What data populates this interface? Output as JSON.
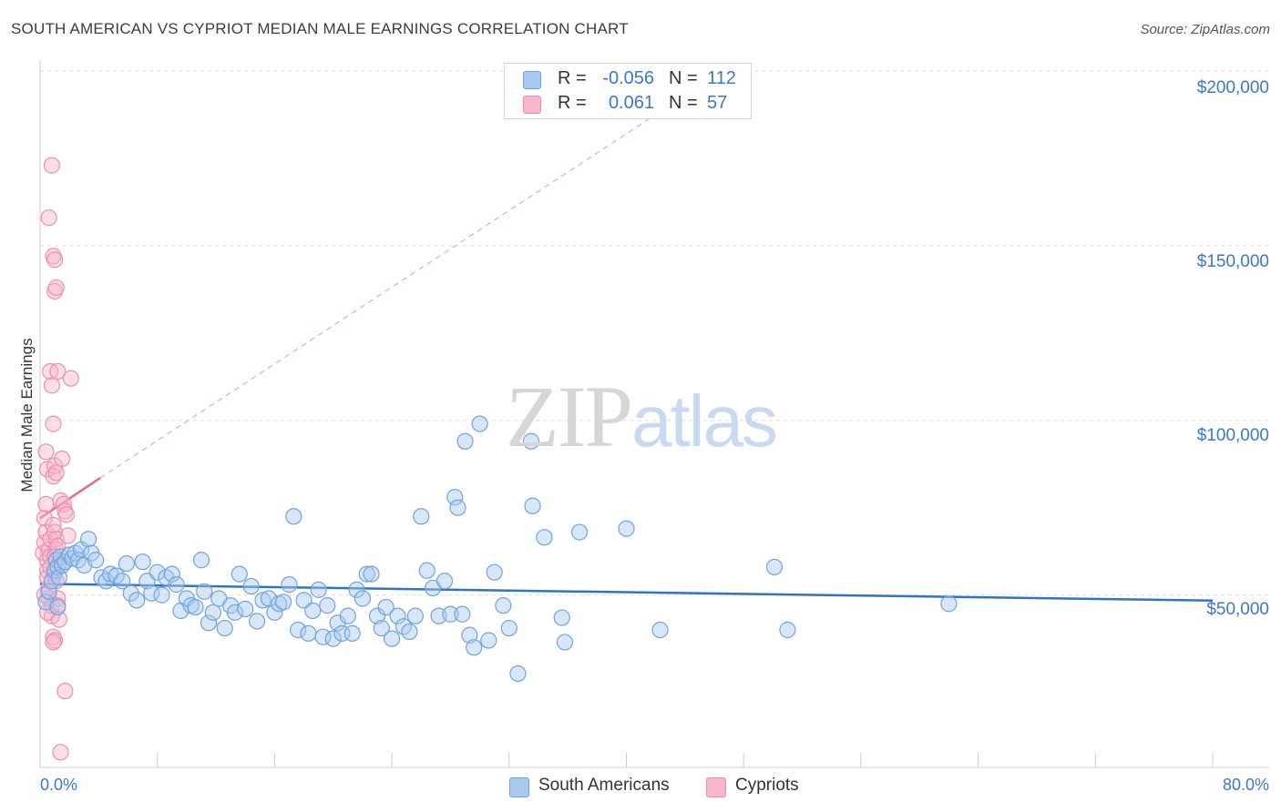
{
  "header": {
    "title": "SOUTH AMERICAN VS CYPRIOT MEDIAN MALE EARNINGS CORRELATION CHART",
    "source": "Source: ZipAtlas.com"
  },
  "watermark": {
    "zip": "ZIP",
    "atlas": "atlas"
  },
  "legend": {
    "rows": [
      {
        "r_label": "R =",
        "r_value": "-0.056",
        "n_label": "N =",
        "n_value": "112",
        "color": "#a9c9f0"
      },
      {
        "r_label": "R =",
        "r_value": "0.061",
        "n_label": "N =",
        "n_value": "57",
        "color": "#f7b6c9"
      }
    ]
  },
  "bottom_legend": [
    {
      "label": "South Americans",
      "color": "#a9c9f0"
    },
    {
      "label": "Cypriots",
      "color": "#f7b6c9"
    }
  ],
  "chart_data": {
    "type": "scatter",
    "title": "SOUTH AMERICAN VS CYPRIOT MEDIAN MALE EARNINGS CORRELATION CHART",
    "xlabel": "",
    "ylabel": "Median Male Earnings",
    "xlim": [
      0,
      80
    ],
    "ylim": [
      0,
      210000
    ],
    "x_tick_labels": {
      "min": "0.0%",
      "max": "80.0%"
    },
    "y_ticks": [
      {
        "value": 50000,
        "label": "$50,000"
      },
      {
        "value": 100000,
        "label": "$100,000"
      },
      {
        "value": 150000,
        "label": "$150,000"
      },
      {
        "value": 200000,
        "label": "$200,000"
      }
    ],
    "grid": true,
    "legend_position": "top-center",
    "series": [
      {
        "name": "South Americans",
        "color": "#6fa3e0",
        "fill": "#a9c9f0",
        "trend": {
          "x": [
            0,
            80
          ],
          "y": [
            53200,
            48400
          ],
          "style": "solid",
          "color": "#2f72c8"
        },
        "points": [
          [
            0.4,
            48000
          ],
          [
            0.6,
            51000
          ],
          [
            0.8,
            54000
          ],
          [
            1.0,
            57000
          ],
          [
            1.1,
            60000
          ],
          [
            1.2,
            58000
          ],
          [
            1.3,
            55000
          ],
          [
            1.4,
            61000
          ],
          [
            1.5,
            58500
          ],
          [
            1.7,
            59500
          ],
          [
            2.0,
            61500
          ],
          [
            2.2,
            60500
          ],
          [
            2.4,
            62000
          ],
          [
            2.6,
            60000
          ],
          [
            2.8,
            63000
          ],
          [
            3.0,
            58500
          ],
          [
            3.3,
            66000
          ],
          [
            3.5,
            62000
          ],
          [
            3.8,
            60000
          ],
          [
            4.2,
            55000
          ],
          [
            4.5,
            54000
          ],
          [
            4.8,
            56000
          ],
          [
            5.2,
            55500
          ],
          [
            5.6,
            54000
          ],
          [
            5.9,
            59000
          ],
          [
            6.2,
            50500
          ],
          [
            6.6,
            48500
          ],
          [
            7.0,
            59500
          ],
          [
            7.3,
            54000
          ],
          [
            7.6,
            50500
          ],
          [
            8.0,
            56500
          ],
          [
            8.3,
            50000
          ],
          [
            8.6,
            55000
          ],
          [
            9.0,
            56000
          ],
          [
            9.3,
            53000
          ],
          [
            9.6,
            45500
          ],
          [
            10.0,
            49000
          ],
          [
            10.3,
            47000
          ],
          [
            10.6,
            46500
          ],
          [
            11.0,
            60000
          ],
          [
            11.2,
            51000
          ],
          [
            11.5,
            42000
          ],
          [
            11.8,
            45000
          ],
          [
            12.2,
            49000
          ],
          [
            12.6,
            40500
          ],
          [
            13.0,
            47000
          ],
          [
            13.3,
            45000
          ],
          [
            13.6,
            56000
          ],
          [
            14.0,
            46000
          ],
          [
            14.4,
            52500
          ],
          [
            14.8,
            42500
          ],
          [
            15.2,
            48500
          ],
          [
            15.6,
            49000
          ],
          [
            16.0,
            45000
          ],
          [
            16.3,
            47500
          ],
          [
            16.6,
            48000
          ],
          [
            17.0,
            53000
          ],
          [
            17.3,
            72500
          ],
          [
            17.6,
            40000
          ],
          [
            18.0,
            48500
          ],
          [
            18.3,
            39000
          ],
          [
            18.6,
            45500
          ],
          [
            19.0,
            51500
          ],
          [
            19.3,
            38000
          ],
          [
            19.6,
            47000
          ],
          [
            20.0,
            37500
          ],
          [
            20.3,
            42000
          ],
          [
            20.6,
            39000
          ],
          [
            21.0,
            44000
          ],
          [
            21.3,
            39000
          ],
          [
            21.6,
            51500
          ],
          [
            22.0,
            49000
          ],
          [
            22.3,
            56000
          ],
          [
            22.6,
            56000
          ],
          [
            23.0,
            44000
          ],
          [
            23.3,
            40500
          ],
          [
            23.6,
            46500
          ],
          [
            24.0,
            37500
          ],
          [
            24.4,
            44000
          ],
          [
            24.8,
            41000
          ],
          [
            25.2,
            39500
          ],
          [
            25.6,
            44000
          ],
          [
            26.0,
            72500
          ],
          [
            26.4,
            57000
          ],
          [
            26.8,
            52000
          ],
          [
            27.2,
            44000
          ],
          [
            27.6,
            54000
          ],
          [
            28.0,
            44500
          ],
          [
            28.3,
            78000
          ],
          [
            28.5,
            75000
          ],
          [
            28.8,
            44500
          ],
          [
            29.0,
            94000
          ],
          [
            29.3,
            38500
          ],
          [
            29.6,
            35000
          ],
          [
            30.0,
            99000
          ],
          [
            30.6,
            37000
          ],
          [
            31.0,
            56500
          ],
          [
            31.6,
            47000
          ],
          [
            32.0,
            40500
          ],
          [
            32.6,
            27500
          ],
          [
            33.5,
            94000
          ],
          [
            33.6,
            75500
          ],
          [
            34.4,
            66500
          ],
          [
            35.6,
            43500
          ],
          [
            35.8,
            36500
          ],
          [
            36.8,
            68000
          ],
          [
            40.0,
            69000
          ],
          [
            42.3,
            40000
          ],
          [
            50.1,
            58000
          ],
          [
            51.0,
            40000
          ],
          [
            62.0,
            47500
          ],
          [
            1.2,
            46500
          ]
        ]
      },
      {
        "name": "Cypriots",
        "color": "#ec8fad",
        "fill": "#f7b6c9",
        "trend": {
          "x": [
            0,
            4.1
          ],
          "y": [
            72000,
            83500
          ],
          "style": "solid",
          "color": "#e06c92",
          "extended": {
            "x": [
              4.1,
              44
            ],
            "y": [
              83500,
              193000
            ],
            "style": "dashed"
          }
        },
        "points": [
          [
            0.2,
            62000
          ],
          [
            0.3,
            65000
          ],
          [
            0.3,
            72000
          ],
          [
            0.4,
            76000
          ],
          [
            0.4,
            68000
          ],
          [
            0.5,
            60000
          ],
          [
            0.5,
            57000
          ],
          [
            0.5,
            55000
          ],
          [
            0.6,
            63000
          ],
          [
            0.6,
            52000
          ],
          [
            0.6,
            49000
          ],
          [
            0.7,
            66000
          ],
          [
            0.7,
            61000
          ],
          [
            0.7,
            58000
          ],
          [
            0.8,
            47000
          ],
          [
            0.8,
            44000
          ],
          [
            0.4,
            91000
          ],
          [
            0.5,
            86000
          ],
          [
            0.6,
            158000
          ],
          [
            0.8,
            173000
          ],
          [
            0.9,
            147000
          ],
          [
            1.0,
            137000
          ],
          [
            0.7,
            114000
          ],
          [
            0.8,
            110000
          ],
          [
            0.9,
            99000
          ],
          [
            1.0,
            87000
          ],
          [
            0.9,
            84000
          ],
          [
            1.1,
            85000
          ],
          [
            1.0,
            146000
          ],
          [
            1.1,
            138000
          ],
          [
            1.2,
            114000
          ],
          [
            0.9,
            70000
          ],
          [
            1.0,
            68000
          ],
          [
            1.1,
            66000
          ],
          [
            1.1,
            63000
          ],
          [
            1.2,
            64000
          ],
          [
            1.0,
            61000
          ],
          [
            1.3,
            59000
          ],
          [
            1.4,
            77000
          ],
          [
            1.5,
            89000
          ],
          [
            1.6,
            76000
          ],
          [
            1.7,
            74000
          ],
          [
            1.8,
            73000
          ],
          [
            1.9,
            67000
          ],
          [
            2.1,
            112000
          ],
          [
            1.0,
            56000
          ],
          [
            1.1,
            54000
          ],
          [
            1.2,
            49000
          ],
          [
            1.2,
            47000
          ],
          [
            1.3,
            43000
          ],
          [
            0.9,
            38000
          ],
          [
            1.0,
            37000
          ],
          [
            0.9,
            36500
          ],
          [
            1.7,
            22500
          ],
          [
            1.4,
            5000
          ],
          [
            0.3,
            50000
          ],
          [
            0.5,
            45000
          ]
        ]
      }
    ]
  }
}
